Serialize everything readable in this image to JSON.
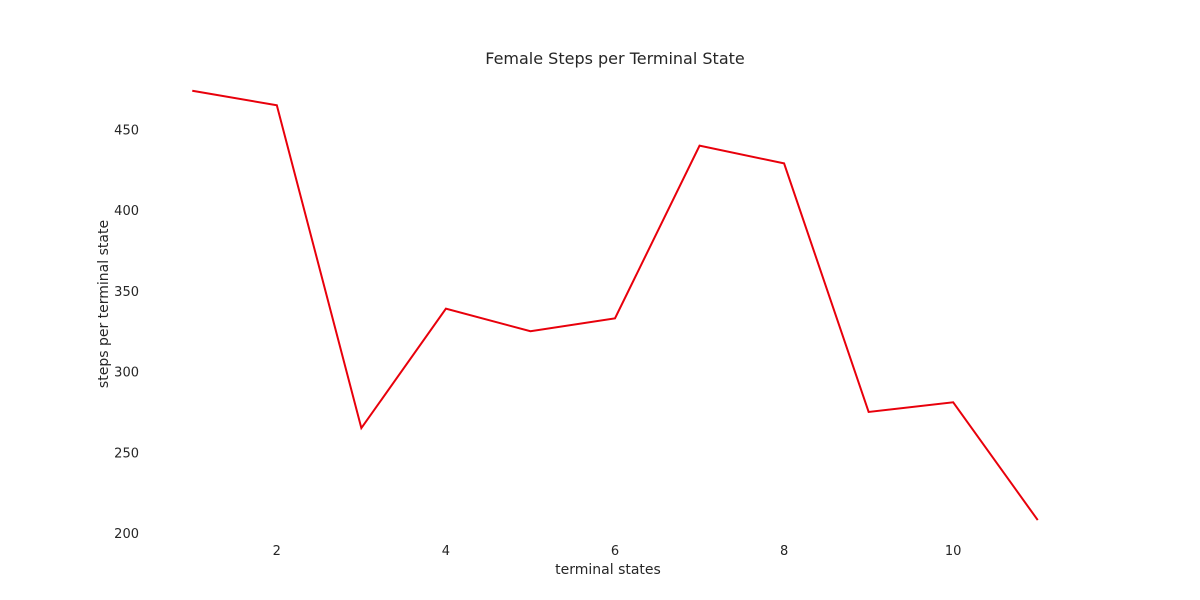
{
  "chart_data": {
    "type": "line",
    "title": "Female Steps per Terminal State",
    "xlabel": "terminal states",
    "ylabel": "steps per terminal state",
    "x": [
      1,
      2,
      3,
      4,
      5,
      6,
      7,
      8,
      9,
      10,
      11
    ],
    "series": [
      {
        "values": [
          474,
          465,
          265,
          339,
          325,
          333,
          440,
          429,
          275,
          281,
          208
        ],
        "color": "#e8000b"
      }
    ],
    "xticks": [
      2,
      4,
      6,
      8,
      10
    ],
    "yticks": [
      200,
      250,
      300,
      350,
      400,
      450
    ],
    "xlim": [
      0.5,
      11.5
    ],
    "ylim": [
      200,
      485
    ],
    "grid": false,
    "legend": "none"
  }
}
